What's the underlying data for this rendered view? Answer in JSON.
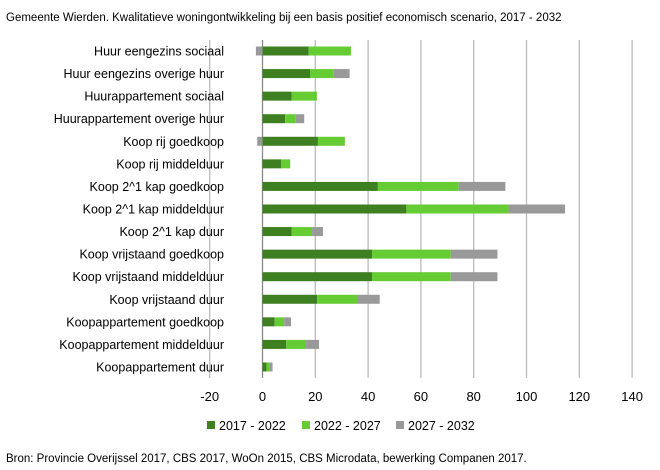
{
  "chart_data": {
    "type": "bar",
    "orientation": "horizontal",
    "stacked": true,
    "title": "Gemeente Wierden. Kwalitatieve woningontwikkeling bij een basis positief economisch scenario, 2017 - 2032",
    "source": "Bron: Provincie Overijssel 2017, CBS 2017, WoOn 2015, CBS Microdata, bewerking Companen 2017.",
    "xlim": [
      -20,
      140
    ],
    "xticks": [
      -20,
      0,
      20,
      40,
      60,
      80,
      100,
      120,
      140
    ],
    "grid": true,
    "legend_position": "bottom",
    "categories": [
      "Huur eengezins sociaal",
      "Huur eengezins overige huur",
      "Huurappartement sociaal",
      "Huurappartement overige huur",
      "Koop rij goedkoop",
      "Koop rij middelduur",
      "Koop 2^1 kap goedkoop",
      "Koop 2^1 kap middelduur",
      "Koop 2^1 kap duur",
      "Koop vrijstaand goedkoop",
      "Koop vrijstaand middelduur",
      "Koop vrijstaand duur",
      "Koopappartement goedkoop",
      "Koopappartement middelduur",
      "Koopappartement duur"
    ],
    "series": [
      {
        "name": "2017 - 2022",
        "color": "#3e7f22",
        "values": [
          17.5,
          18,
          11,
          8.6,
          21,
          7,
          43.7,
          54.5,
          11,
          41.5,
          41.5,
          20.7,
          4.6,
          9,
          1.5
        ]
      },
      {
        "name": "2022 - 2027",
        "color": "#66cc33",
        "values": [
          16,
          8.8,
          9.6,
          4,
          10.2,
          3.5,
          30.6,
          38.7,
          7.8,
          29.8,
          29.8,
          15.1,
          3.6,
          7.5,
          1.1
        ]
      },
      {
        "name": "2027 - 2032",
        "color": "#999999",
        "values": [
          -2.5,
          6.2,
          0,
          3.2,
          -2,
          0,
          17.7,
          21.4,
          4.1,
          17.7,
          17.7,
          8.6,
          2.6,
          4.9,
          1.2
        ]
      }
    ]
  }
}
